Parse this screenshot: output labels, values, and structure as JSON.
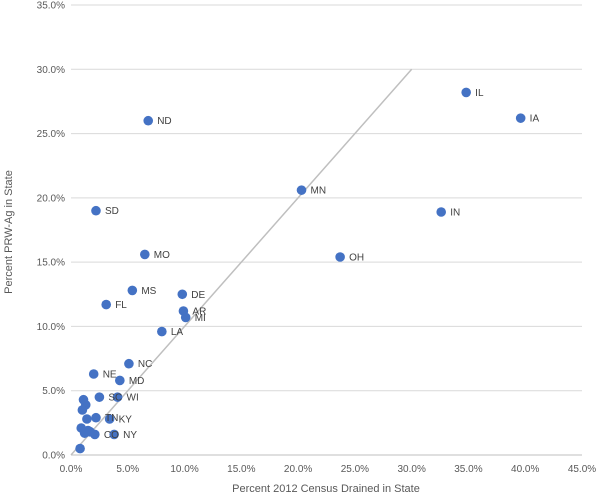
{
  "chart_data": {
    "type": "scatter",
    "title": "",
    "xlabel": "Percent 2012 Census Drained in State",
    "ylabel": "Percent PRW-Ag in State",
    "xlim": [
      0,
      45
    ],
    "ylim": [
      0,
      35
    ],
    "x_ticks": [
      "0.0%",
      "5.0%",
      "10.0%",
      "15.0%",
      "20.0%",
      "25.0%",
      "30.0%",
      "35.0%",
      "40.0%",
      "45.0%"
    ],
    "y_ticks": [
      "0.0%",
      "5.0%",
      "10.0%",
      "15.0%",
      "20.0%",
      "25.0%",
      "30.0%",
      "35.0%"
    ],
    "grid": "horizontal",
    "reference_line": {
      "from": [
        0,
        0
      ],
      "to": [
        30,
        30
      ],
      "color": "#bfbfbf"
    },
    "marker_color": "#4472c4",
    "points": [
      {
        "label": "IL",
        "x": 34.8,
        "y": 28.2
      },
      {
        "label": "IA",
        "x": 39.6,
        "y": 26.2
      },
      {
        "label": "ND",
        "x": 6.8,
        "y": 26.0
      },
      {
        "label": "MN",
        "x": 20.3,
        "y": 20.6
      },
      {
        "label": "SD",
        "x": 2.2,
        "y": 19.0
      },
      {
        "label": "IN",
        "x": 32.6,
        "y": 18.9
      },
      {
        "label": "MO",
        "x": 6.5,
        "y": 15.6
      },
      {
        "label": "OH",
        "x": 23.7,
        "y": 15.4
      },
      {
        "label": "MS",
        "x": 5.4,
        "y": 12.8
      },
      {
        "label": "DE",
        "x": 9.8,
        "y": 12.5
      },
      {
        "label": "FL",
        "x": 3.1,
        "y": 11.7
      },
      {
        "label": "AR",
        "x": 9.9,
        "y": 11.2
      },
      {
        "label": "MI",
        "x": 10.1,
        "y": 10.7
      },
      {
        "label": "LA",
        "x": 8.0,
        "y": 9.6
      },
      {
        "label": "NC",
        "x": 5.1,
        "y": 7.1
      },
      {
        "label": "NE",
        "x": 2.0,
        "y": 6.3
      },
      {
        "label": "MD",
        "x": 4.3,
        "y": 5.8
      },
      {
        "label": "WI",
        "x": 4.1,
        "y": 4.5
      },
      {
        "label": "SC",
        "x": 2.5,
        "y": 4.5
      },
      {
        "label": "TN",
        "x": 2.2,
        "y": 2.9
      },
      {
        "label": "KY",
        "x": 3.4,
        "y": 2.8
      },
      {
        "label": "CO",
        "x": 2.1,
        "y": 1.6
      },
      {
        "label": "NY",
        "x": 3.8,
        "y": 1.6
      },
      {
        "label": "",
        "x": 1.1,
        "y": 4.3
      },
      {
        "label": "",
        "x": 1.3,
        "y": 3.9
      },
      {
        "label": "",
        "x": 1.0,
        "y": 3.5
      },
      {
        "label": "",
        "x": 1.4,
        "y": 2.8
      },
      {
        "label": "",
        "x": 0.9,
        "y": 2.1
      },
      {
        "label": "",
        "x": 1.5,
        "y": 1.9
      },
      {
        "label": "",
        "x": 1.2,
        "y": 1.7
      },
      {
        "label": "",
        "x": 1.7,
        "y": 1.8
      },
      {
        "label": "",
        "x": 0.8,
        "y": 0.5
      }
    ]
  }
}
